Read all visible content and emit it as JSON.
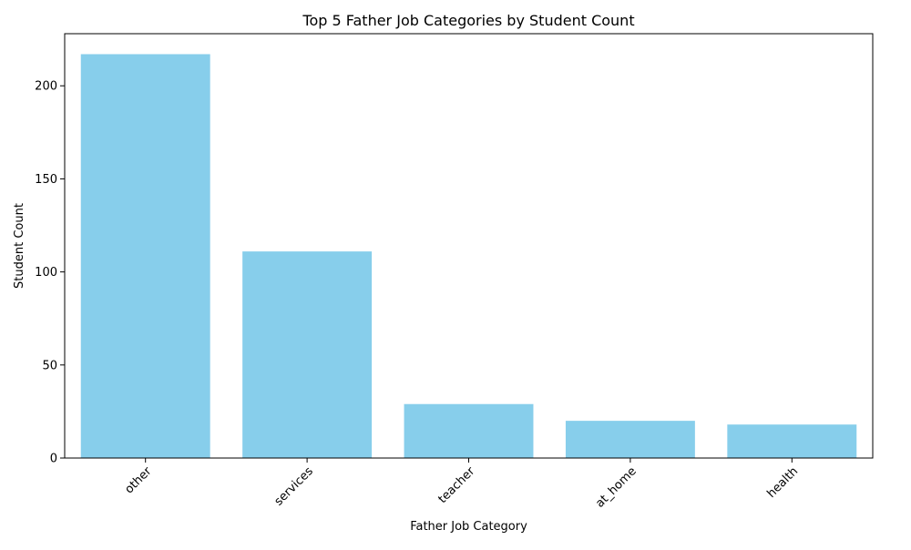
{
  "chart_data": {
    "type": "bar",
    "title": "Top 5 Father Job Categories by Student Count",
    "xlabel": "Father Job Category",
    "ylabel": "Student Count",
    "categories": [
      "other",
      "services",
      "teacher",
      "at_home",
      "health"
    ],
    "values": [
      217,
      111,
      29,
      20,
      18
    ],
    "ylim": [
      0,
      228
    ],
    "yticks": [
      0,
      50,
      100,
      150,
      200
    ],
    "xtick_rotation": 45,
    "bar_color": "#87CEEB",
    "grid": false,
    "legend": "none"
  }
}
